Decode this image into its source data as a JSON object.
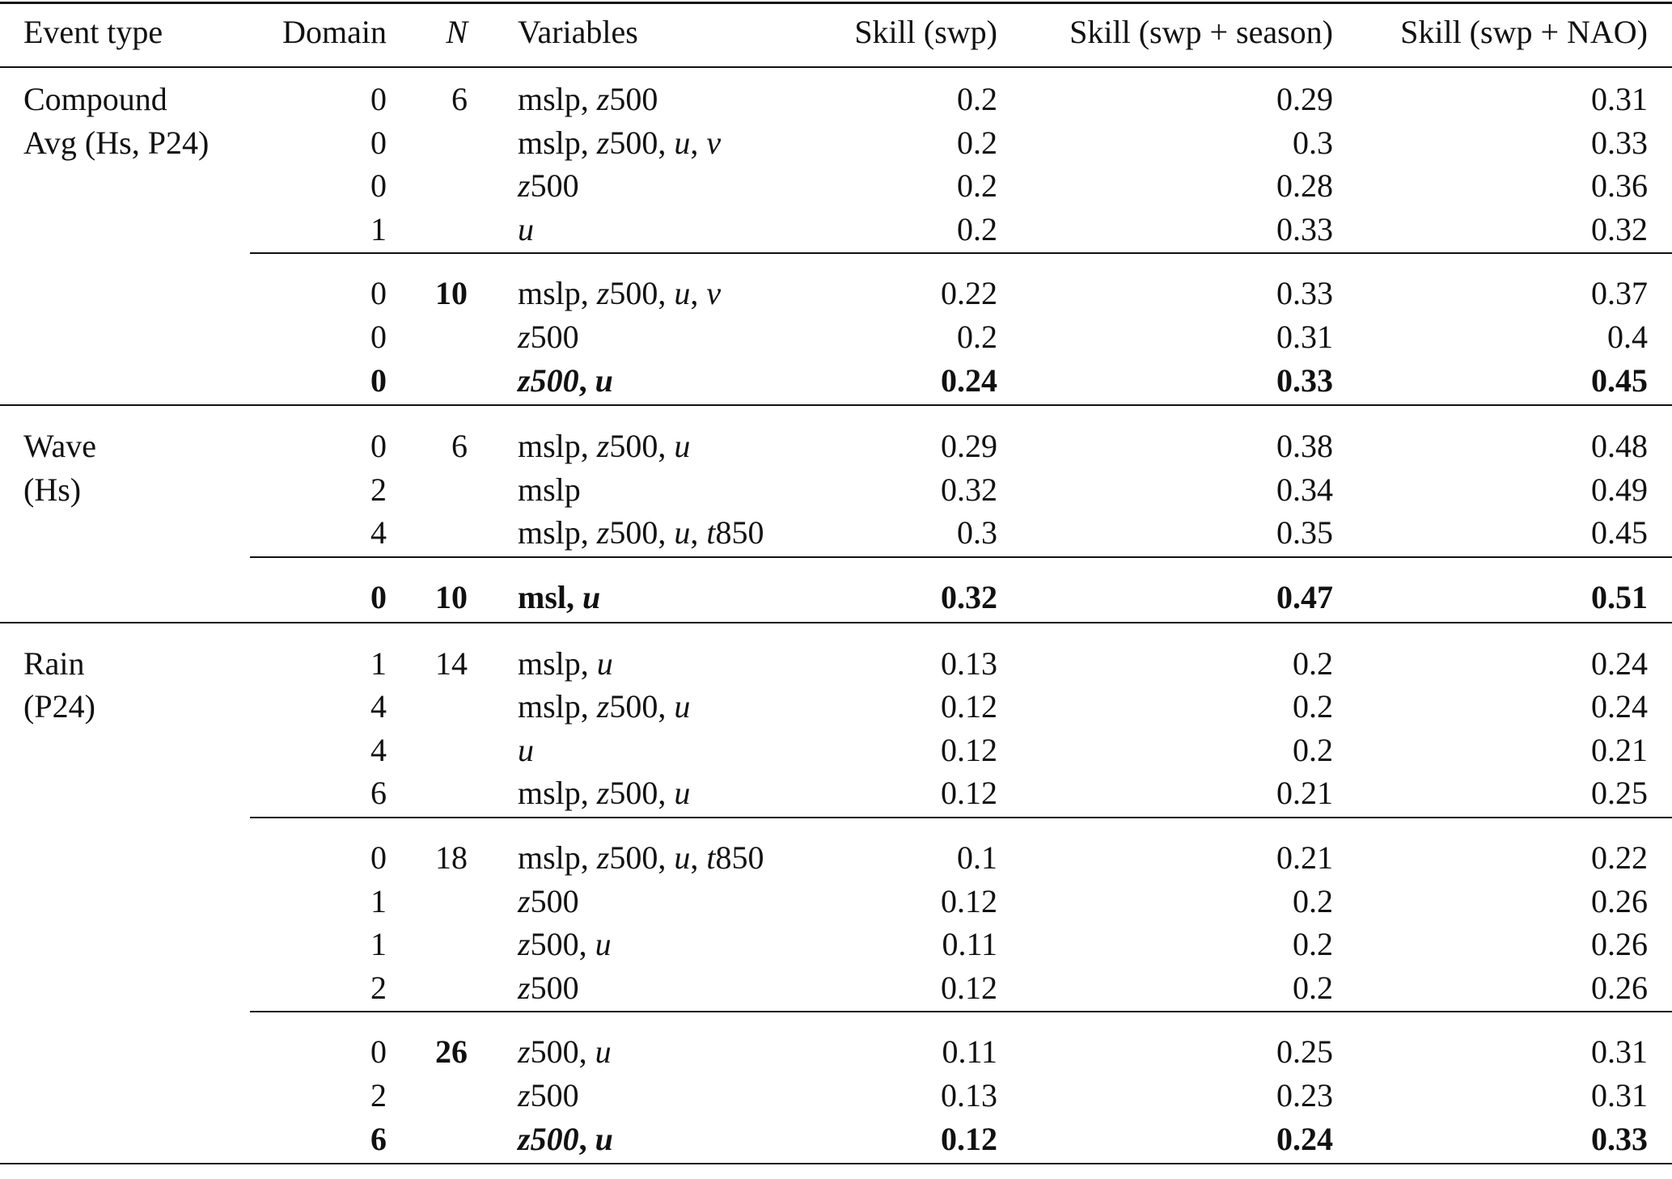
{
  "headers": {
    "event_type": "Event type",
    "domain": "Domain",
    "n": "N",
    "variables": "Variables",
    "skill_swp": "Skill (swp)",
    "skill_season": "Skill (swp + season)",
    "skill_nao": "Skill (swp + NAO)"
  },
  "groups": [
    {
      "label": [
        "Compound",
        "Avg (Hs, P24)"
      ],
      "rows": [
        {
          "domain": "0",
          "n": "6",
          "vars": [
            [
              "mslp",
              false
            ],
            [
              ", ",
              false
            ],
            [
              "z",
              true
            ],
            [
              "500",
              false
            ]
          ],
          "s1": "0.2",
          "s2": "0.29",
          "s3": "0.31",
          "bold": false
        },
        {
          "domain": "0",
          "n": "",
          "vars": [
            [
              "mslp",
              false
            ],
            [
              ", ",
              false
            ],
            [
              "z",
              true
            ],
            [
              "500, ",
              false
            ],
            [
              "u",
              true
            ],
            [
              ", ",
              false
            ],
            [
              "v",
              true
            ]
          ],
          "s1": "0.2",
          "s2": "0.3",
          "s3": "0.33",
          "bold": false
        },
        {
          "domain": "0",
          "n": "",
          "vars": [
            [
              "z",
              true
            ],
            [
              "500",
              false
            ]
          ],
          "s1": "0.2",
          "s2": "0.28",
          "s3": "0.36",
          "bold": false
        },
        {
          "domain": "1",
          "n": "",
          "vars": [
            [
              "u",
              true
            ]
          ],
          "s1": "0.2",
          "s2": "0.33",
          "s3": "0.32",
          "bold": false,
          "sub_rule_after": true
        },
        {
          "domain": "0",
          "n": "10",
          "n_bold": true,
          "vars": [
            [
              "mslp",
              false
            ],
            [
              ", ",
              false
            ],
            [
              "z",
              true
            ],
            [
              "500, ",
              false
            ],
            [
              "u",
              true
            ],
            [
              ", ",
              false
            ],
            [
              "v",
              true
            ]
          ],
          "s1": "0.22",
          "s2": "0.33",
          "s3": "0.37",
          "bold": false
        },
        {
          "domain": "0",
          "n": "",
          "vars": [
            [
              "z",
              true
            ],
            [
              "500",
              false
            ]
          ],
          "s1": "0.2",
          "s2": "0.31",
          "s3": "0.4",
          "bold": false
        },
        {
          "domain": "0",
          "n": "",
          "vars": [
            [
              "z500",
              true
            ],
            [
              ", ",
              false
            ],
            [
              "u",
              true
            ]
          ],
          "s1": "0.24",
          "s2": "0.33",
          "s3": "0.45",
          "bold": true
        }
      ]
    },
    {
      "label": [
        "Wave",
        "(Hs)"
      ],
      "rows": [
        {
          "domain": "0",
          "n": "6",
          "vars": [
            [
              "mslp",
              false
            ],
            [
              ", ",
              false
            ],
            [
              "z",
              true
            ],
            [
              "500, ",
              false
            ],
            [
              "u",
              true
            ]
          ],
          "s1": "0.29",
          "s2": "0.38",
          "s3": "0.48",
          "bold": false
        },
        {
          "domain": "2",
          "n": "",
          "vars": [
            [
              "mslp",
              false
            ]
          ],
          "s1": "0.32",
          "s2": "0.34",
          "s3": "0.49",
          "bold": false
        },
        {
          "domain": "4",
          "n": "",
          "vars": [
            [
              "mslp",
              false
            ],
            [
              ", ",
              false
            ],
            [
              "z",
              true
            ],
            [
              "500, ",
              false
            ],
            [
              "u",
              true
            ],
            [
              ", ",
              false
            ],
            [
              "t",
              true
            ],
            [
              "850",
              false
            ]
          ],
          "s1": "0.3",
          "s2": "0.35",
          "s3": "0.45",
          "bold": false,
          "sub_rule_after": true
        },
        {
          "domain": "0",
          "n": "10",
          "n_bold": true,
          "vars": [
            [
              "msl",
              false
            ],
            [
              ", ",
              false
            ],
            [
              "u",
              true
            ]
          ],
          "s1": "0.32",
          "s2": "0.47",
          "s3": "0.51",
          "bold": true
        }
      ]
    },
    {
      "label": [
        "Rain",
        "(P24)"
      ],
      "rows": [
        {
          "domain": "1",
          "n": "14",
          "vars": [
            [
              "mslp",
              false
            ],
            [
              ", ",
              false
            ],
            [
              "u",
              true
            ]
          ],
          "s1": "0.13",
          "s2": "0.2",
          "s3": "0.24",
          "bold": false
        },
        {
          "domain": "4",
          "n": "",
          "vars": [
            [
              "mslp",
              false
            ],
            [
              ", ",
              false
            ],
            [
              "z",
              true
            ],
            [
              "500, ",
              false
            ],
            [
              "u",
              true
            ]
          ],
          "s1": "0.12",
          "s2": "0.2",
          "s3": "0.24",
          "bold": false
        },
        {
          "domain": "4",
          "n": "",
          "vars": [
            [
              "u",
              true
            ]
          ],
          "s1": "0.12",
          "s2": "0.2",
          "s3": "0.21",
          "bold": false
        },
        {
          "domain": "6",
          "n": "",
          "vars": [
            [
              "mslp",
              false
            ],
            [
              ", ",
              false
            ],
            [
              "z",
              true
            ],
            [
              "500, ",
              false
            ],
            [
              "u",
              true
            ]
          ],
          "s1": "0.12",
          "s2": "0.21",
          "s3": "0.25",
          "bold": false,
          "sub_rule_after": true
        },
        {
          "domain": "0",
          "n": "18",
          "vars": [
            [
              "mslp",
              false
            ],
            [
              ", ",
              false
            ],
            [
              "z",
              true
            ],
            [
              "500, ",
              false
            ],
            [
              "u",
              true
            ],
            [
              ", ",
              false
            ],
            [
              "t",
              true
            ],
            [
              "850",
              false
            ]
          ],
          "s1": "0.1",
          "s2": "0.21",
          "s3": "0.22",
          "bold": false
        },
        {
          "domain": "1",
          "n": "",
          "vars": [
            [
              "z",
              true
            ],
            [
              "500",
              false
            ]
          ],
          "s1": "0.12",
          "s2": "0.2",
          "s3": "0.26",
          "bold": false
        },
        {
          "domain": "1",
          "n": "",
          "vars": [
            [
              "z",
              true
            ],
            [
              "500, ",
              false
            ],
            [
              "u",
              true
            ]
          ],
          "s1": "0.11",
          "s2": "0.2",
          "s3": "0.26",
          "bold": false
        },
        {
          "domain": "2",
          "n": "",
          "vars": [
            [
              "z",
              true
            ],
            [
              "500",
              false
            ]
          ],
          "s1": "0.12",
          "s2": "0.2",
          "s3": "0.26",
          "bold": false,
          "sub_rule_after": true
        },
        {
          "domain": "0",
          "n": "26",
          "n_bold": true,
          "vars": [
            [
              "z",
              true
            ],
            [
              "500, ",
              false
            ],
            [
              "u",
              true
            ]
          ],
          "s1": "0.11",
          "s2": "0.25",
          "s3": "0.31",
          "bold": false
        },
        {
          "domain": "2",
          "n": "",
          "vars": [
            [
              "z",
              true
            ],
            [
              "500",
              false
            ]
          ],
          "s1": "0.13",
          "s2": "0.23",
          "s3": "0.31",
          "bold": false
        },
        {
          "domain": "6",
          "n": "",
          "vars": [
            [
              "z500",
              true
            ],
            [
              ", ",
              false
            ],
            [
              "u",
              true
            ]
          ],
          "s1": "0.12",
          "s2": "0.24",
          "s3": "0.33",
          "bold": true
        }
      ]
    }
  ]
}
